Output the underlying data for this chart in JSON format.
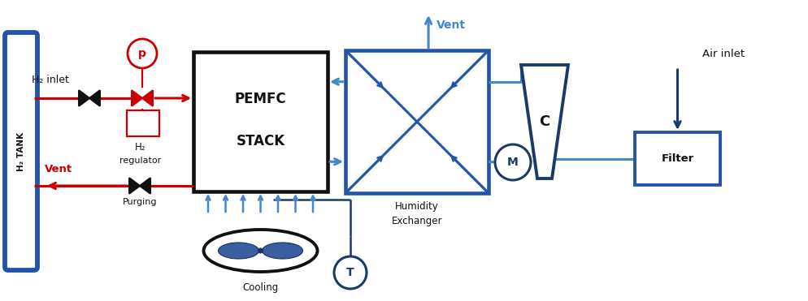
{
  "bg_color": "#ffffff",
  "red": "#cc0000",
  "blue": "#2255aa",
  "light_blue": "#4488cc",
  "dark_blue": "#1a3a6a",
  "black": "#111111",
  "figsize": [
    9.95,
    3.71
  ],
  "dpi": 100,
  "xlim": [
    0,
    9.95
  ],
  "ylim": [
    0,
    3.71
  ]
}
